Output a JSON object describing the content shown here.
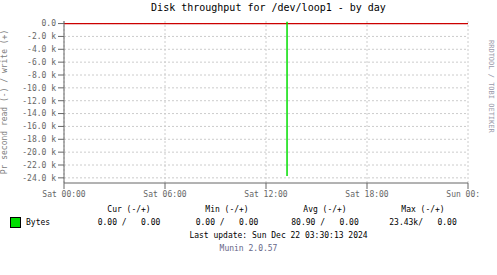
{
  "chart_data": {
    "type": "line",
    "title": "Disk throughput for /dev/loop1  -  by day",
    "y_label": "Pr second read (-) / write (+)",
    "xlim": [
      0,
      86400
    ],
    "xticks": [
      {
        "value": 0,
        "label": "Sat 00:00"
      },
      {
        "value": 21600,
        "label": "Sat 06:00"
      },
      {
        "value": 43200,
        "label": "Sat 12:00"
      },
      {
        "value": 64800,
        "label": "Sat 18:00"
      },
      {
        "value": 86400,
        "label": "Sun 00:00"
      }
    ],
    "ylim": [
      -24800,
      400
    ],
    "yticks": [
      {
        "value": 0,
        "label": "0.0"
      },
      {
        "value": -2000,
        "label": "-2.0 k"
      },
      {
        "value": -4000,
        "label": "-4.0 k"
      },
      {
        "value": -6000,
        "label": "-6.0 k"
      },
      {
        "value": -8000,
        "label": "-8.0 k"
      },
      {
        "value": -10000,
        "label": "-10.0 k"
      },
      {
        "value": -12000,
        "label": "-12.0 k"
      },
      {
        "value": -14000,
        "label": "-14.0 k"
      },
      {
        "value": -16000,
        "label": "-16.0 k"
      },
      {
        "value": -18000,
        "label": "-18.0 k"
      },
      {
        "value": -20000,
        "label": "-20.0 k"
      },
      {
        "value": -22000,
        "label": "-22.0 k"
      },
      {
        "value": -24000,
        "label": "-24.0 k"
      }
    ],
    "grid": true,
    "series": [
      {
        "name": "Bytes",
        "color": "#00dd00",
        "x": [
          47700,
          47700
        ],
        "values": [
          -23700,
          300
        ],
        "stats": [
          {
            "label": "Cur (-/+)",
            "value": "0.00 /   0.00"
          },
          {
            "label": "Min (-/+)",
            "value": "0.00 /   0.00"
          },
          {
            "label": "Avg (-/+)",
            "value": "80.90 /   0.00"
          },
          {
            "label": "Max (-/+)",
            "value": "23.43k/   0.00"
          }
        ]
      }
    ],
    "reference_lines": [
      {
        "y": 0,
        "color": "#cc0000"
      }
    ],
    "annotations": [
      "Last update: Sun Dec 22 03:30:13 2024",
      "Munin 2.0.57",
      "RRDTOOL / TOBI OETIKER"
    ]
  }
}
